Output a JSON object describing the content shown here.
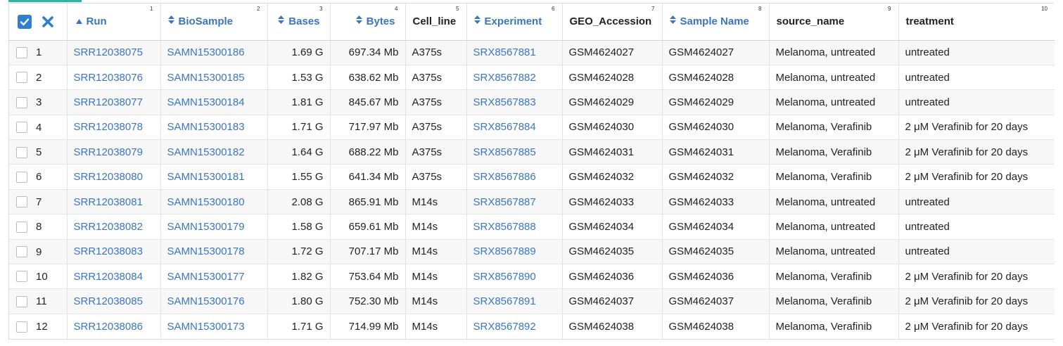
{
  "colors": {
    "accent": "#2bb5a4",
    "link": "#3a75c4",
    "checkbox_fill": "#2f7fd0"
  },
  "header": {
    "select_all_icon": "checkbox-checked-icon",
    "clear_icon": "close-icon",
    "columns": [
      {
        "label": "Run",
        "num": "1",
        "sort": "ascending"
      },
      {
        "label": "BioSample",
        "num": "2",
        "sort": "both"
      },
      {
        "label": "Bases",
        "num": "3",
        "sort": "both"
      },
      {
        "label": "Bytes",
        "num": "4",
        "sort": "both"
      },
      {
        "label": "Cell_line",
        "num": "5",
        "sort": "none"
      },
      {
        "label": "Experiment",
        "num": "6",
        "sort": "both"
      },
      {
        "label": "GEO_Accession",
        "num": "7",
        "sort": "none"
      },
      {
        "label": "Sample Name",
        "num": "8",
        "sort": "both"
      },
      {
        "label": "source_name",
        "num": "9",
        "sort": "none"
      },
      {
        "label": "treatment",
        "num": "10",
        "sort": "none"
      }
    ]
  },
  "rows": [
    {
      "n": "1",
      "run": "SRR12038075",
      "biosample": "SAMN15300186",
      "bases": "1.69 G",
      "bytes": "697.34 Mb",
      "cell_line": "A375s",
      "experiment": "SRX8567881",
      "geo": "GSM4624027",
      "sample": "GSM4624027",
      "source": "Melanoma, untreated",
      "treatment": "untreated"
    },
    {
      "n": "2",
      "run": "SRR12038076",
      "biosample": "SAMN15300185",
      "bases": "1.53 G",
      "bytes": "638.62 Mb",
      "cell_line": "A375s",
      "experiment": "SRX8567882",
      "geo": "GSM4624028",
      "sample": "GSM4624028",
      "source": "Melanoma, untreated",
      "treatment": "untreated"
    },
    {
      "n": "3",
      "run": "SRR12038077",
      "biosample": "SAMN15300184",
      "bases": "1.81 G",
      "bytes": "845.67 Mb",
      "cell_line": "A375s",
      "experiment": "SRX8567883",
      "geo": "GSM4624029",
      "sample": "GSM4624029",
      "source": "Melanoma, untreated",
      "treatment": "untreated"
    },
    {
      "n": "4",
      "run": "SRR12038078",
      "biosample": "SAMN15300183",
      "bases": "1.71 G",
      "bytes": "717.97 Mb",
      "cell_line": "A375s",
      "experiment": "SRX8567884",
      "geo": "GSM4624030",
      "sample": "GSM4624030",
      "source": "Melanoma, Verafinib",
      "treatment": "2 μM Verafinib for 20 days"
    },
    {
      "n": "5",
      "run": "SRR12038079",
      "biosample": "SAMN15300182",
      "bases": "1.64 G",
      "bytes": "688.22 Mb",
      "cell_line": "A375s",
      "experiment": "SRX8567885",
      "geo": "GSM4624031",
      "sample": "GSM4624031",
      "source": "Melanoma, Verafinib",
      "treatment": "2 μM Verafinib for 20 days"
    },
    {
      "n": "6",
      "run": "SRR12038080",
      "biosample": "SAMN15300181",
      "bases": "1.55 G",
      "bytes": "641.34 Mb",
      "cell_line": "A375s",
      "experiment": "SRX8567886",
      "geo": "GSM4624032",
      "sample": "GSM4624032",
      "source": "Melanoma, Verafinib",
      "treatment": "2 μM Verafinib for 20 days"
    },
    {
      "n": "7",
      "run": "SRR12038081",
      "biosample": "SAMN15300180",
      "bases": "2.08 G",
      "bytes": "865.91 Mb",
      "cell_line": "M14s",
      "experiment": "SRX8567887",
      "geo": "GSM4624033",
      "sample": "GSM4624033",
      "source": "Melanoma, untreated",
      "treatment": "untreated"
    },
    {
      "n": "8",
      "run": "SRR12038082",
      "biosample": "SAMN15300179",
      "bases": "1.58 G",
      "bytes": "659.61 Mb",
      "cell_line": "M14s",
      "experiment": "SRX8567888",
      "geo": "GSM4624034",
      "sample": "GSM4624034",
      "source": "Melanoma, untreated",
      "treatment": "untreated"
    },
    {
      "n": "9",
      "run": "SRR12038083",
      "biosample": "SAMN15300178",
      "bases": "1.72 G",
      "bytes": "707.17 Mb",
      "cell_line": "M14s",
      "experiment": "SRX8567889",
      "geo": "GSM4624035",
      "sample": "GSM4624035",
      "source": "Melanoma, untreated",
      "treatment": "untreated"
    },
    {
      "n": "10",
      "run": "SRR12038084",
      "biosample": "SAMN15300177",
      "bases": "1.82 G",
      "bytes": "753.64 Mb",
      "cell_line": "M14s",
      "experiment": "SRX8567890",
      "geo": "GSM4624036",
      "sample": "GSM4624036",
      "source": "Melanoma, Verafinib",
      "treatment": "2 μM Verafinib for 20 days"
    },
    {
      "n": "11",
      "run": "SRR12038085",
      "biosample": "SAMN15300176",
      "bases": "1.80 G",
      "bytes": "752.30 Mb",
      "cell_line": "M14s",
      "experiment": "SRX8567891",
      "geo": "GSM4624037",
      "sample": "GSM4624037",
      "source": "Melanoma, Verafinib",
      "treatment": "2 μM Verafinib for 20 days"
    },
    {
      "n": "12",
      "run": "SRR12038086",
      "biosample": "SAMN15300173",
      "bases": "1.71 G",
      "bytes": "714.99 Mb",
      "cell_line": "M14s",
      "experiment": "SRX8567892",
      "geo": "GSM4624038",
      "sample": "GSM4624038",
      "source": "Melanoma, Verafinib",
      "treatment": "2 μM Verafinib for 20 days"
    }
  ]
}
